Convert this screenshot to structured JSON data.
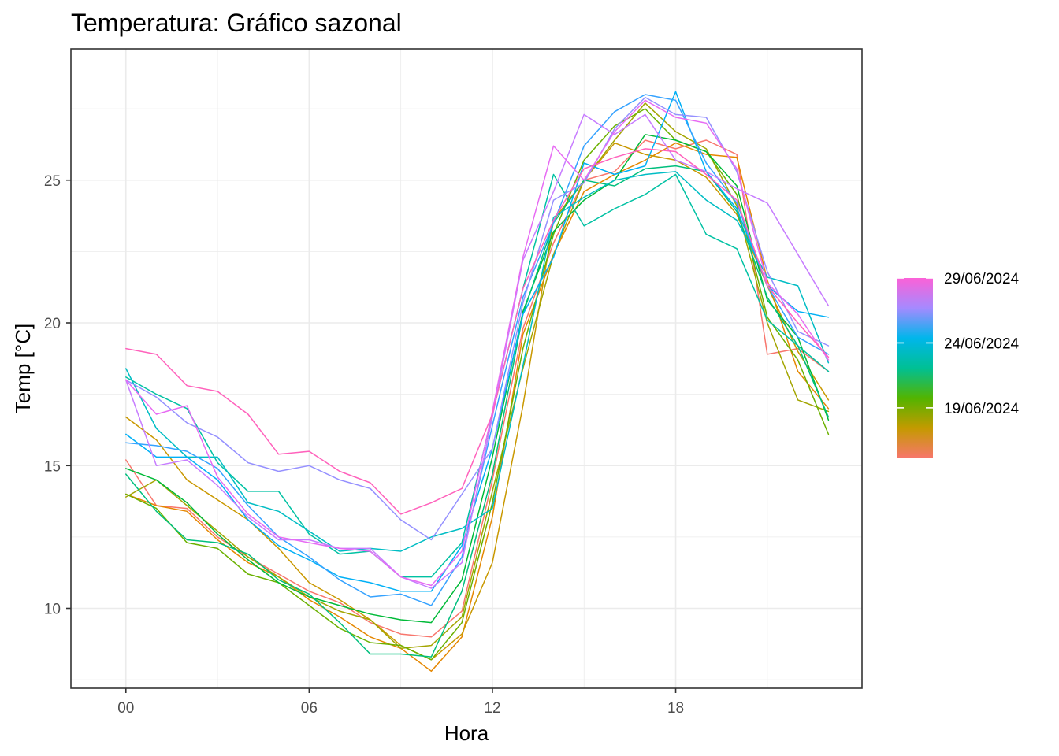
{
  "chart_data": {
    "type": "line",
    "title": "Temperatura: Gráfico sazonal",
    "xlabel": "Hora",
    "ylabel": "Temp [°C]",
    "xlim": [
      -1.8,
      24.1
    ],
    "ylim": [
      7.2,
      29.6
    ],
    "x_ticks": [
      {
        "value": 0,
        "label": "00"
      },
      {
        "value": 6,
        "label": "06"
      },
      {
        "value": 12,
        "label": "12"
      },
      {
        "value": 18,
        "label": "18"
      }
    ],
    "y_ticks": [
      {
        "value": 10,
        "label": "10"
      },
      {
        "value": 15,
        "label": "15"
      },
      {
        "value": 20,
        "label": "20"
      },
      {
        "value": 25,
        "label": "25"
      }
    ],
    "grid": true,
    "legend": {
      "type": "colorbar",
      "placement": "right",
      "gradient_colors": [
        "#F8766D",
        "#C49A00",
        "#53B400",
        "#00C094",
        "#00B6EB",
        "#A58AFF",
        "#FB61D7"
      ],
      "labels": [
        {
          "label": "29/06/2024",
          "fraction": 1.0
        },
        {
          "label": "24/06/2024",
          "fraction": 0.64
        },
        {
          "label": "19/06/2024",
          "fraction": 0.28
        }
      ]
    },
    "x": [
      0,
      1,
      2,
      3,
      4,
      5,
      6,
      7,
      8,
      9,
      10,
      11,
      12,
      13,
      14,
      15,
      16,
      17,
      18,
      19,
      20,
      21,
      22,
      23
    ],
    "series": [
      {
        "color": "#F8766D",
        "values": [
          15.2,
          13.6,
          13.5,
          12.5,
          11.8,
          11.2,
          10.6,
          10.2,
          9.5,
          9.1,
          9.0,
          9.9,
          14.5,
          19.8,
          22.8,
          25.0,
          25.3,
          26.4,
          26.1,
          26.4,
          25.9,
          18.9,
          19.1,
          18.3
        ]
      },
      {
        "color": "#E58700",
        "values": [
          14.0,
          13.6,
          13.4,
          12.4,
          11.6,
          11.1,
          10.3,
          9.7,
          9.0,
          8.6,
          7.8,
          9.0,
          13.2,
          19.6,
          22.4,
          24.6,
          25.2,
          25.7,
          26.3,
          25.9,
          25.8,
          21.5,
          18.3,
          17.0
        ]
      },
      {
        "color": "#C99800",
        "values": [
          16.7,
          15.9,
          14.5,
          13.8,
          13.1,
          12.1,
          10.9,
          10.3,
          9.6,
          8.7,
          8.2,
          9.1,
          11.6,
          17.1,
          23.6,
          25.0,
          26.3,
          25.9,
          25.7,
          25.1,
          23.8,
          21.3,
          19.0,
          17.3
        ]
      },
      {
        "color": "#A3A500",
        "values": [
          13.9,
          14.5,
          13.6,
          12.7,
          11.8,
          11.1,
          10.4,
          9.9,
          9.6,
          8.6,
          8.7,
          9.7,
          14.1,
          18.4,
          22.4,
          25.0,
          26.4,
          27.7,
          26.7,
          26.1,
          24.1,
          20.0,
          17.3,
          16.9
        ]
      },
      {
        "color": "#6BB100",
        "values": [
          14.0,
          13.5,
          12.3,
          12.1,
          11.2,
          10.9,
          10.1,
          9.3,
          8.8,
          8.7,
          8.2,
          9.5,
          13.7,
          19.1,
          23.1,
          25.7,
          26.9,
          27.5,
          26.4,
          26.0,
          24.5,
          20.2,
          18.7,
          16.1
        ]
      },
      {
        "color": "#00BA38",
        "values": [
          14.9,
          14.5,
          13.7,
          12.6,
          11.7,
          10.9,
          10.4,
          10.1,
          9.8,
          9.6,
          9.5,
          11.0,
          15.3,
          20.4,
          23.2,
          24.3,
          25.0,
          26.6,
          26.4,
          26.0,
          24.8,
          20.8,
          19.5,
          16.6
        ]
      },
      {
        "color": "#00BF7D",
        "values": [
          14.7,
          13.4,
          12.4,
          12.3,
          11.9,
          11.0,
          10.5,
          9.5,
          8.4,
          8.4,
          8.3,
          10.6,
          14.7,
          20.3,
          23.5,
          25.0,
          24.8,
          25.4,
          25.5,
          25.3,
          23.9,
          20.9,
          19.2,
          16.7
        ]
      },
      {
        "color": "#00C1A3",
        "values": [
          18.1,
          17.5,
          17.0,
          15.1,
          14.1,
          14.1,
          12.6,
          11.9,
          12.0,
          11.1,
          11.1,
          12.3,
          16.8,
          21.2,
          25.2,
          23.4,
          24.0,
          24.5,
          25.2,
          23.1,
          22.6,
          20.1,
          19.2,
          18.3
        ]
      },
      {
        "color": "#00BDC4",
        "values": [
          18.4,
          16.3,
          15.3,
          15.3,
          13.7,
          13.4,
          12.7,
          12.0,
          12.1,
          12.0,
          12.5,
          12.8,
          13.5,
          18.5,
          23.7,
          24.4,
          25.0,
          25.2,
          25.3,
          24.3,
          23.6,
          21.6,
          21.3,
          18.6
        ]
      },
      {
        "color": "#00B0F6",
        "values": [
          16.1,
          15.3,
          15.3,
          14.5,
          13.1,
          12.2,
          11.7,
          11.1,
          10.9,
          10.6,
          10.6,
          12.2,
          15.6,
          20.3,
          22.3,
          25.6,
          25.2,
          25.5,
          28.1,
          25.3,
          24.0,
          21.3,
          20.4,
          20.2
        ]
      },
      {
        "color": "#35A2FF",
        "values": [
          15.8,
          15.7,
          15.5,
          14.9,
          13.6,
          12.5,
          11.8,
          11.0,
          10.4,
          10.5,
          10.1,
          11.8,
          16.4,
          20.9,
          23.5,
          26.2,
          27.4,
          28.0,
          27.8,
          25.6,
          24.2,
          21.3,
          19.5,
          18.9
        ]
      },
      {
        "color": "#9590FF",
        "values": [
          18.0,
          17.4,
          16.5,
          16.0,
          15.1,
          14.8,
          15.0,
          14.5,
          14.2,
          13.1,
          12.4,
          14.0,
          15.6,
          20.7,
          24.3,
          24.9,
          26.8,
          27.9,
          27.3,
          27.2,
          25.3,
          21.8,
          19.7,
          19.2
        ]
      },
      {
        "color": "#C77CFF",
        "values": [
          18.0,
          15.0,
          15.2,
          14.3,
          13.2,
          12.4,
          12.4,
          12.1,
          12.1,
          11.1,
          10.7,
          11.6,
          16.7,
          22.2,
          24.6,
          27.3,
          26.6,
          27.3,
          25.7,
          25.3,
          24.7,
          24.2,
          22.4,
          20.6
        ]
      },
      {
        "color": "#E76BF3",
        "values": [
          18.0,
          16.8,
          17.1,
          14.6,
          13.3,
          12.5,
          12.3,
          12.1,
          12.0,
          11.1,
          10.8,
          12.0,
          16.9,
          22.3,
          26.2,
          25.0,
          26.7,
          27.8,
          27.2,
          27.0,
          25.4,
          21.4,
          20.3,
          18.7
        ]
      },
      {
        "color": "#FF62BC",
        "values": [
          19.1,
          18.9,
          17.8,
          17.6,
          16.8,
          15.4,
          15.5,
          14.8,
          14.4,
          13.3,
          13.7,
          14.2,
          16.8,
          21.2,
          23.6,
          25.4,
          25.8,
          26.1,
          26.0,
          25.2,
          24.3,
          21.3,
          20.0,
          18.8
        ]
      }
    ]
  }
}
